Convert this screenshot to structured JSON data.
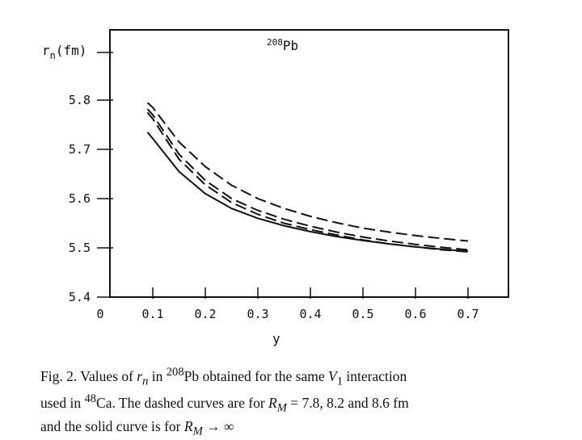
{
  "chart_data": {
    "type": "line",
    "annotation_mass": "208",
    "annotation_element": "Pb",
    "ylabel_main": "r",
    "ylabel_sub": "n",
    "ylabel_unit": "(fm)",
    "xlabel": "y",
    "xlim": [
      0,
      0.7
    ],
    "ylim": [
      5.4,
      5.9
    ],
    "x_ticks": [
      "0",
      "0.1",
      "0.2",
      "0.3",
      "0.4",
      "0.5",
      "0.6",
      "0.7"
    ],
    "y_ticks": [
      "5.4",
      "5.5",
      "5.6",
      "5.7",
      "5.8"
    ],
    "grid": false,
    "series": [
      {
        "style": "dashed",
        "x": [
          0.09,
          0.1,
          0.15,
          0.2,
          0.25,
          0.3,
          0.35,
          0.4,
          0.45,
          0.5,
          0.55,
          0.6,
          0.65,
          0.7
        ],
        "y": [
          5.795,
          5.785,
          5.715,
          5.665,
          5.627,
          5.6,
          5.58,
          5.564,
          5.551,
          5.54,
          5.532,
          5.525,
          5.519,
          5.514
        ]
      },
      {
        "style": "dashed",
        "x": [
          0.09,
          0.1,
          0.15,
          0.2,
          0.25,
          0.3,
          0.35,
          0.4,
          0.45,
          0.5,
          0.55,
          0.6,
          0.65,
          0.7
        ],
        "y": [
          5.782,
          5.77,
          5.69,
          5.637,
          5.6,
          5.576,
          5.558,
          5.544,
          5.532,
          5.522,
          5.514,
          5.507,
          5.501,
          5.496
        ]
      },
      {
        "style": "dashed",
        "x": [
          0.09,
          0.1,
          0.15,
          0.2,
          0.25,
          0.3,
          0.35,
          0.4,
          0.45,
          0.5,
          0.55,
          0.6,
          0.65,
          0.7
        ],
        "y": [
          5.775,
          5.762,
          5.68,
          5.628,
          5.592,
          5.568,
          5.55,
          5.537,
          5.526,
          5.516,
          5.508,
          5.502,
          5.496,
          5.492
        ]
      },
      {
        "style": "solid",
        "x": [
          0.09,
          0.1,
          0.15,
          0.2,
          0.25,
          0.3,
          0.35,
          0.4,
          0.45,
          0.5,
          0.55,
          0.6,
          0.65,
          0.7
        ],
        "y": [
          5.735,
          5.722,
          5.655,
          5.61,
          5.58,
          5.56,
          5.545,
          5.533,
          5.523,
          5.515,
          5.508,
          5.502,
          5.497,
          5.493
        ]
      }
    ]
  },
  "caption": {
    "fig_label": "Fig. 2.",
    "t1": " Values of ",
    "r_sym": "r",
    "r_sub": "n",
    "t2": " in ",
    "pb_mass": "208",
    "pb_el": "Pb",
    "t3": " obtained for the same ",
    "v_sym": "V",
    "v_sub": "1",
    "t4": " interaction",
    "t5": "used in ",
    "ca_mass": "48",
    "ca_el": "Ca",
    "t6": ". The dashed curves are for ",
    "rm_sym": "R",
    "rm_sub": "M",
    "t7": " = 7.8, 8.2 and 8.6 fm",
    "t8": "and the solid curve is for ",
    "rm2_sym": "R",
    "rm2_sub": "M",
    "t9": " → ∞"
  }
}
